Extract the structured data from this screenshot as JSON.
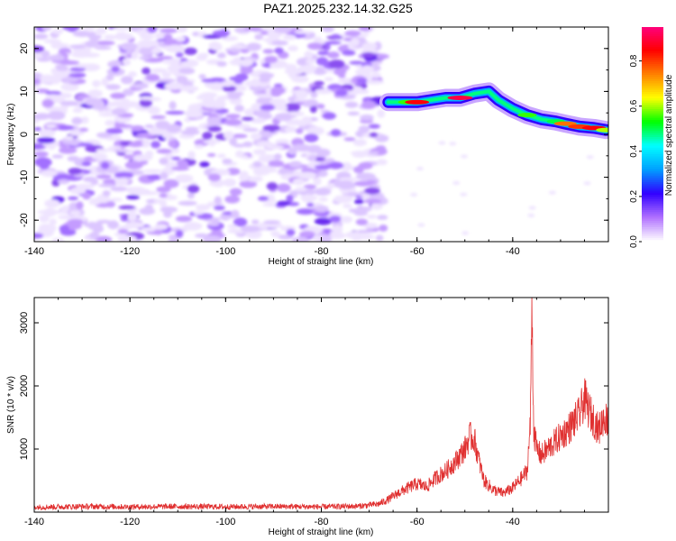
{
  "title": "PAZ1.2025.232.14.32.G25",
  "chart_data": [
    {
      "type": "heatmap",
      "title": "PAZ1.2025.232.14.32.G25",
      "xlabel": "Height of straight line (km)",
      "ylabel": "Frequency (Hz)",
      "xlim": [
        -140,
        -20
      ],
      "ylim": [
        -25,
        25
      ],
      "x_ticks": [
        "-140",
        "-120",
        "-100",
        "-80",
        "-60",
        "-40"
      ],
      "y_ticks": [
        "-20",
        "-10",
        "0",
        "10",
        "20"
      ],
      "colorbar": {
        "label": "Normalized spectral amplitude",
        "range": [
          0,
          0.95
        ],
        "ticks": [
          "0.0",
          "0.2",
          "0.4",
          "0.6",
          "0.8"
        ],
        "colors": [
          "#ffffff",
          "#b070ff",
          "#3000ff",
          "#00a0ff",
          "#00ffff",
          "#00ff00",
          "#ffff00",
          "#ff8000",
          "#ff0000",
          "#ff0080"
        ]
      },
      "noise_region_km": [
        -140,
        -67
      ],
      "signal_ridge": [
        {
          "x": -66,
          "y": 7.5,
          "v": 0.25
        },
        {
          "x": -62,
          "y": 7.5,
          "v": 0.55
        },
        {
          "x": -60,
          "y": 7.5,
          "v": 0.85
        },
        {
          "x": -57,
          "y": 8.0,
          "v": 0.35
        },
        {
          "x": -54,
          "y": 8.5,
          "v": 0.45
        },
        {
          "x": -51,
          "y": 8.5,
          "v": 0.9
        },
        {
          "x": -48,
          "y": 9.5,
          "v": 0.3
        },
        {
          "x": -45,
          "y": 10.0,
          "v": 0.35
        },
        {
          "x": -43,
          "y": 8.0,
          "v": 0.45
        },
        {
          "x": -40,
          "y": 6.0,
          "v": 0.4
        },
        {
          "x": -37,
          "y": 4.5,
          "v": 0.55
        },
        {
          "x": -34,
          "y": 3.5,
          "v": 0.45
        },
        {
          "x": -31,
          "y": 3.0,
          "v": 0.5
        },
        {
          "x": -29,
          "y": 2.5,
          "v": 0.75
        },
        {
          "x": -26,
          "y": 1.8,
          "v": 0.8
        },
        {
          "x": -23,
          "y": 1.5,
          "v": 0.85
        },
        {
          "x": -20.5,
          "y": 1.0,
          "v": 0.6
        }
      ]
    },
    {
      "type": "line",
      "xlabel": "Height of straight line (km)",
      "ylabel": "SNR (10 * v/v)",
      "xlim": [
        -140,
        -20
      ],
      "ylim": [
        0,
        3400
      ],
      "x_ticks": [
        "-140",
        "-120",
        "-100",
        "-80",
        "-60",
        "-40"
      ],
      "y_ticks": [
        "1000",
        "2000",
        "3000"
      ],
      "color": "#e03030",
      "x": [
        -140,
        -130,
        -120,
        -110,
        -100,
        -90,
        -80,
        -72,
        -68,
        -66,
        -64,
        -62,
        -60,
        -58,
        -56,
        -54,
        -52,
        -50,
        -49,
        -48,
        -47,
        -46,
        -44,
        -42,
        -40,
        -38,
        -37,
        -36.3,
        -36,
        -35.6,
        -35,
        -34,
        -32,
        -30,
        -28,
        -26,
        -25,
        -24,
        -22,
        -21,
        -20
      ],
      "y": [
        80,
        90,
        85,
        90,
        85,
        90,
        85,
        95,
        130,
        200,
        300,
        380,
        450,
        400,
        550,
        650,
        800,
        1000,
        1200,
        1150,
        800,
        500,
        350,
        300,
        380,
        550,
        650,
        1400,
        3400,
        1300,
        1000,
        900,
        1050,
        1200,
        1350,
        1550,
        1800,
        1600,
        1300,
        1500,
        1450
      ]
    }
  ]
}
